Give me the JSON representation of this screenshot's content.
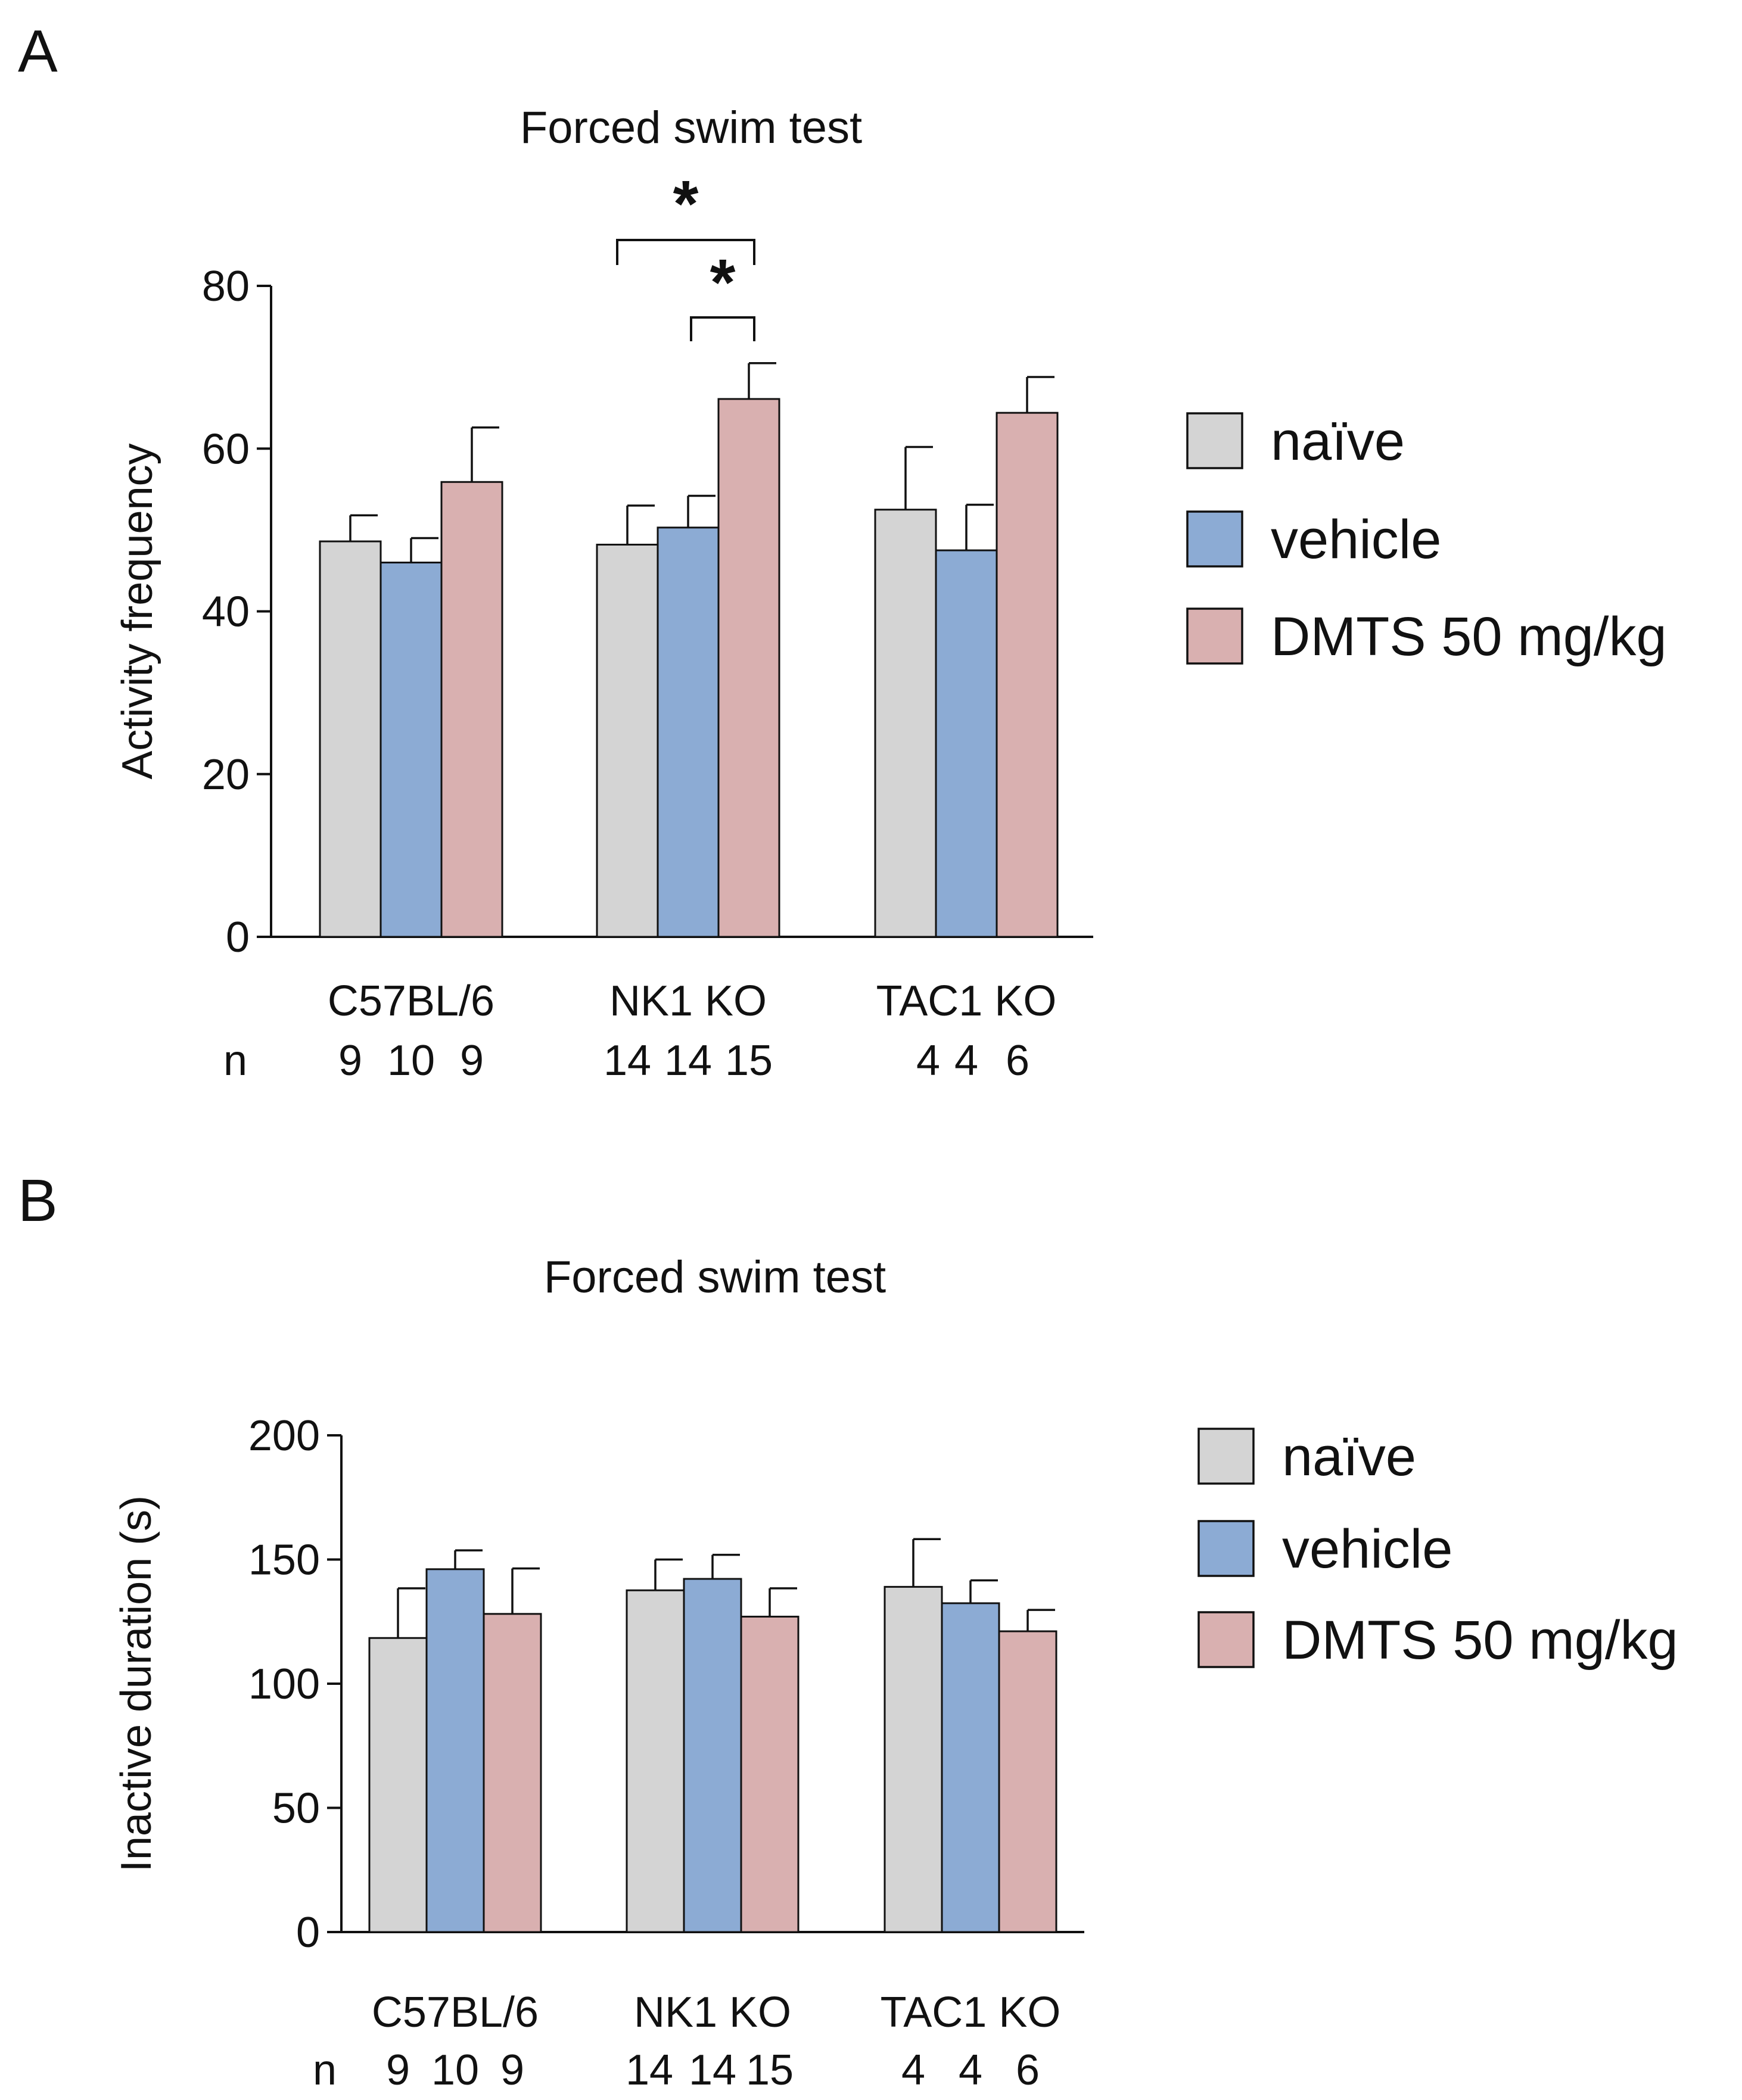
{
  "panels": [
    {
      "letter": "A",
      "title": "Forced swim test",
      "ylabel": "Activity frequency",
      "n_label": "n",
      "significance": [
        "*",
        "*"
      ]
    },
    {
      "letter": "B",
      "title": "Forced swim test",
      "ylabel": "Inactive duration (s)",
      "n_label": "n",
      "significance": []
    }
  ],
  "legend": [
    {
      "label": "naïve",
      "color": "#d4d4d4"
    },
    {
      "label": "vehicle",
      "color": "#8cabd4"
    },
    {
      "label": "DMTS 50 mg/kg",
      "color": "#d9b0b0"
    }
  ],
  "chart_data": [
    {
      "type": "bar",
      "title": "Forced swim test",
      "xlabel": "",
      "ylabel": "Activity frequency",
      "ylim": [
        0,
        80
      ],
      "yticks": [
        0,
        20,
        40,
        60,
        80
      ],
      "categories": [
        "C57BL/6",
        "NK1 KO",
        "TAC1 KO"
      ],
      "series": [
        {
          "name": "naïve",
          "values": [
            48.6,
            48.2,
            52.5
          ],
          "errors": [
            3.2,
            4.8,
            7.7
          ],
          "n": [
            "9",
            "14",
            "4"
          ]
        },
        {
          "name": "vehicle",
          "values": [
            46.0,
            50.3,
            47.5
          ],
          "errors": [
            3.0,
            3.9,
            5.6
          ],
          "n": [
            "10",
            "14",
            "4"
          ]
        },
        {
          "name": "DMTS 50 mg/kg",
          "values": [
            55.9,
            66.1,
            64.4
          ],
          "errors": [
            6.7,
            4.4,
            4.4
          ],
          "n": [
            "9",
            "15",
            "6"
          ]
        }
      ],
      "significance": [
        {
          "between": [
            "naïve",
            "DMTS 50 mg/kg"
          ],
          "category": "NK1 KO",
          "label": "*"
        },
        {
          "between": [
            "vehicle",
            "DMTS 50 mg/kg"
          ],
          "category": "NK1 KO",
          "label": "*"
        }
      ],
      "legend": "right",
      "grid": false
    },
    {
      "type": "bar",
      "title": "Forced swim test",
      "xlabel": "",
      "ylabel": "Inactive duration (s)",
      "ylim": [
        0,
        200
      ],
      "yticks": [
        0,
        50,
        100,
        150,
        200
      ],
      "categories": [
        "C57BL/6",
        "NK1 KO",
        "TAC1 KO"
      ],
      "series": [
        {
          "name": "naïve",
          "values": [
            118.4,
            137.6,
            139.0
          ],
          "errors": [
            20.0,
            12.4,
            19.2
          ],
          "n": [
            "9",
            "14",
            "4"
          ]
        },
        {
          "name": "vehicle",
          "values": [
            146.1,
            142.2,
            132.4
          ],
          "errors": [
            7.6,
            9.7,
            9.2
          ],
          "n": [
            "10",
            "14",
            "4"
          ]
        },
        {
          "name": "DMTS 50 mg/kg",
          "values": [
            128.1,
            127.0,
            121.1
          ],
          "errors": [
            18.3,
            11.4,
            8.6
          ],
          "n": [
            "9",
            "15",
            "6"
          ]
        }
      ],
      "legend": "right",
      "grid": false
    }
  ]
}
